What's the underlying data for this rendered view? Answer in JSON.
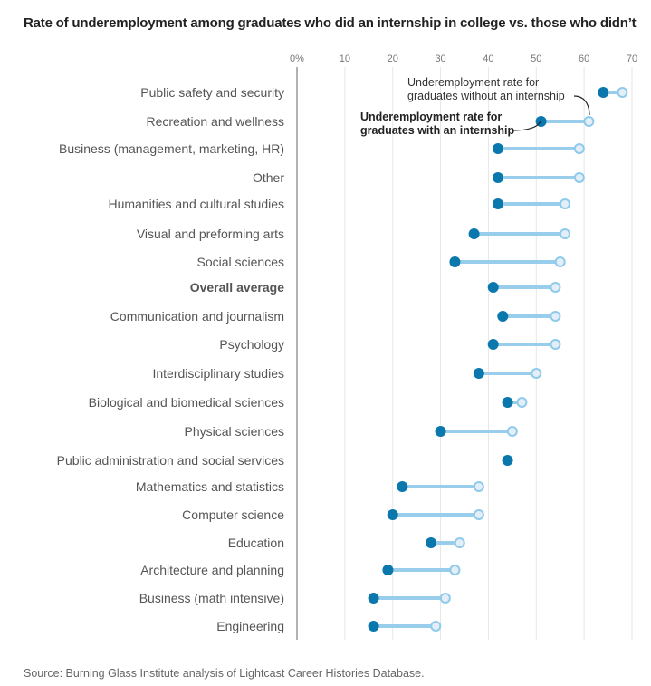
{
  "title": "Rate of underemployment among graduates who did an internship in college vs. those who didn’t",
  "source": "Source: Burning Glass Institute analysis of Lightcast Career Histories Database.",
  "colors": {
    "with_internship": "#0a77ad",
    "without_internship_stroke": "#8ecbea",
    "without_internship_fill": "#e3eef8",
    "connector": "#99cdec",
    "gridline": "#e6e6e6",
    "axis": "#999999"
  },
  "chart_data": {
    "type": "dumbbell",
    "title": "Rate of underemployment among graduates who did an internship in college vs. those who didn’t",
    "xlabel": "",
    "ylabel": "",
    "xlim": [
      0,
      70
    ],
    "x_ticks": [
      0,
      10,
      20,
      30,
      40,
      50,
      60,
      70
    ],
    "x_tick_labels": [
      "0%",
      "10",
      "20",
      "30",
      "40",
      "50",
      "60",
      "70"
    ],
    "grid": true,
    "categories": [
      "Public safety and security",
      "Recreation and wellness",
      "Business (management, marketing, HR)",
      "Other",
      "Humanities and cultural studies",
      "Visual and preforming arts",
      "Social sciences",
      "Overall average",
      "Communication and journalism",
      "Psychology",
      "Interdisciplinary studies",
      "Biological and biomedical sciences",
      "Physical sciences",
      "Public administration and social services",
      "Mathematics and statistics",
      "Computer science",
      "Education",
      "Architecture and planning",
      "Business (math intensive)",
      "Engineering"
    ],
    "bold_categories": [
      "Overall average"
    ],
    "series": [
      {
        "name": "Underemployment rate for graduates with an internship",
        "values": [
          64,
          51,
          42,
          42,
          42,
          37,
          33,
          41,
          43,
          41,
          38,
          44,
          30,
          44,
          22,
          20,
          28,
          19,
          16,
          16
        ]
      },
      {
        "name": "Underemployment rate for graduates without an internship",
        "values": [
          68,
          61,
          59,
          59,
          56,
          56,
          55,
          54,
          54,
          54,
          50,
          47,
          45,
          44,
          38,
          38,
          34,
          33,
          31,
          29
        ]
      }
    ],
    "annotations": [
      {
        "text_lines": [
          "Underemployment rate for",
          "graduates without an internship"
        ],
        "series": 1,
        "category": "Recreation and wellness",
        "bold": false
      },
      {
        "text_lines": [
          "Underemployment rate for",
          "graduates with an internship"
        ],
        "series": 0,
        "category": "Recreation and wellness",
        "bold": true
      }
    ]
  }
}
